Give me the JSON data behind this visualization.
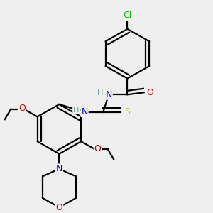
{
  "background_color": "#efefef",
  "atom_colors": {
    "C": "#000000",
    "N": "#0000cc",
    "O": "#cc0000",
    "S": "#cccc00",
    "Cl": "#00bb00",
    "H": "#6a9a9a"
  },
  "bond_lw": 1.6,
  "figsize": [
    3.0,
    3.0
  ],
  "dpi": 100,
  "fontsize": 9
}
